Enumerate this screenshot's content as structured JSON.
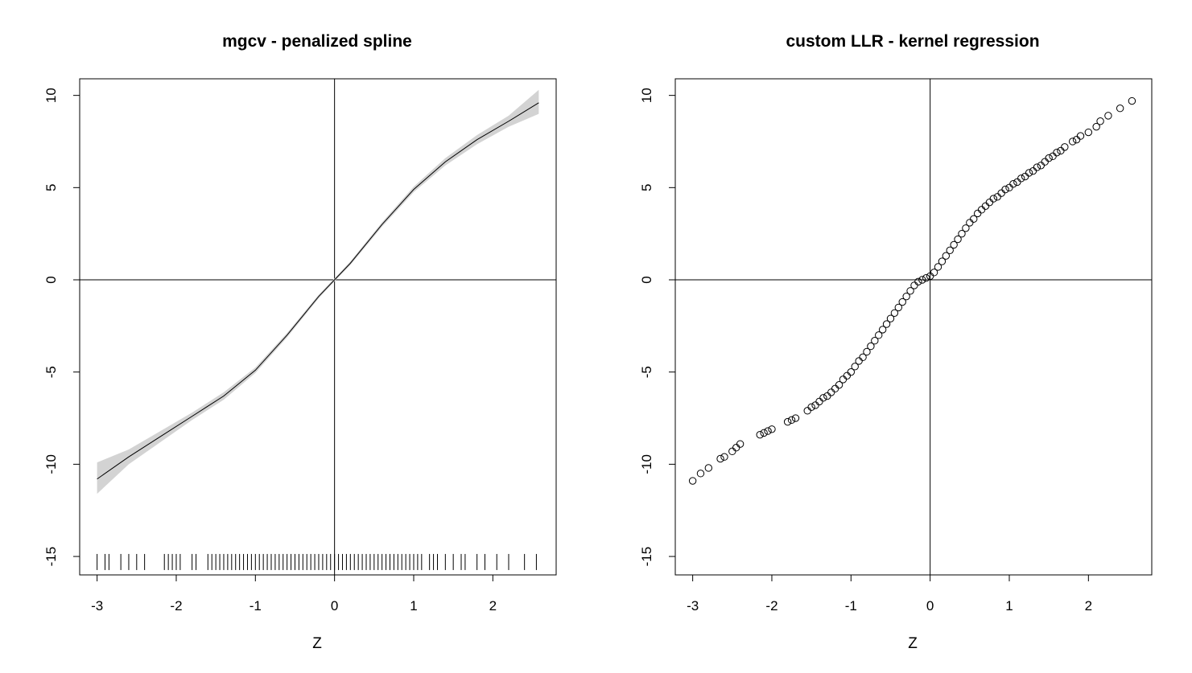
{
  "chart_data": [
    {
      "type": "line",
      "title": "mgcv - penalized spline",
      "xlabel": "Z",
      "ylabel": "",
      "xlim": [
        -3.22,
        2.8
      ],
      "ylim": [
        -16.0,
        10.9
      ],
      "x_ticks": [
        "-3",
        "-2",
        "-1",
        "0",
        "1",
        "2"
      ],
      "y_ticks": [
        "-15",
        "-10",
        "-5",
        "0",
        "5",
        "10"
      ],
      "reference_lines": {
        "x": 0,
        "y": 0
      },
      "grid": false,
      "legend": "none",
      "band_color": "#d3d3d3",
      "line_color": "#000000",
      "series": [
        {
          "x": [
            -3.0,
            -2.6,
            -2.2,
            -1.8,
            -1.4,
            -1.0,
            -0.6,
            -0.2,
            0.0,
            0.2,
            0.6,
            1.0,
            1.4,
            1.8,
            2.2,
            2.58
          ],
          "y": [
            -10.8,
            -9.6,
            -8.5,
            -7.4,
            -6.3,
            -4.9,
            -3.0,
            -0.9,
            0.0,
            0.9,
            3.0,
            4.9,
            6.4,
            7.6,
            8.6,
            9.6
          ],
          "lower": [
            -11.6,
            -10.0,
            -8.8,
            -7.6,
            -6.5,
            -5.05,
            -3.12,
            -1.0,
            -0.08,
            0.8,
            2.88,
            4.75,
            6.2,
            7.35,
            8.3,
            9.0
          ],
          "upper": [
            -9.9,
            -9.2,
            -8.2,
            -7.2,
            -6.1,
            -4.75,
            -2.88,
            -0.8,
            0.08,
            1.0,
            3.12,
            5.05,
            6.6,
            7.85,
            8.9,
            10.3
          ]
        }
      ],
      "rug_y": -15.3,
      "rug_x": [
        -3.0,
        -2.9,
        -2.85,
        -2.7,
        -2.6,
        -2.5,
        -2.4,
        -2.15,
        -2.1,
        -2.05,
        -2.0,
        -1.95,
        -1.8,
        -1.75,
        -1.6,
        -1.55,
        -1.5,
        -1.45,
        -1.4,
        -1.35,
        -1.3,
        -1.25,
        -1.2,
        -1.15,
        -1.1,
        -1.05,
        -1.0,
        -0.95,
        -0.9,
        -0.85,
        -0.8,
        -0.75,
        -0.7,
        -0.65,
        -0.6,
        -0.55,
        -0.5,
        -0.45,
        -0.4,
        -0.35,
        -0.3,
        -0.25,
        -0.2,
        -0.15,
        -0.1,
        -0.05,
        0.0,
        0.05,
        0.1,
        0.15,
        0.2,
        0.25,
        0.3,
        0.35,
        0.4,
        0.45,
        0.5,
        0.55,
        0.6,
        0.65,
        0.7,
        0.75,
        0.8,
        0.85,
        0.9,
        0.95,
        1.0,
        1.05,
        1.1,
        1.2,
        1.25,
        1.3,
        1.4,
        1.5,
        1.6,
        1.65,
        1.8,
        1.9,
        2.05,
        2.2,
        2.4,
        2.55
      ]
    },
    {
      "type": "scatter",
      "title": "custom LLR - kernel regression",
      "xlabel": "Z",
      "ylabel": "",
      "xlim": [
        -3.22,
        2.8
      ],
      "ylim": [
        -16.0,
        10.9
      ],
      "x_ticks": [
        "-3",
        "-2",
        "-1",
        "0",
        "1",
        "2"
      ],
      "y_ticks": [
        "-15",
        "-10",
        "-5",
        "0",
        "5",
        "10"
      ],
      "reference_lines": {
        "x": 0,
        "y": 0
      },
      "grid": false,
      "legend": "none",
      "marker": "open-circle",
      "series": [
        {
          "x": [
            -3.0,
            -2.9,
            -2.8,
            -2.65,
            -2.6,
            -2.5,
            -2.45,
            -2.4,
            -2.15,
            -2.1,
            -2.05,
            -2.0,
            -1.8,
            -1.75,
            -1.7,
            -1.55,
            -1.5,
            -1.45,
            -1.4,
            -1.35,
            -1.3,
            -1.25,
            -1.2,
            -1.15,
            -1.1,
            -1.05,
            -1.0,
            -0.95,
            -0.9,
            -0.85,
            -0.8,
            -0.75,
            -0.7,
            -0.65,
            -0.6,
            -0.55,
            -0.5,
            -0.45,
            -0.4,
            -0.35,
            -0.3,
            -0.25,
            -0.2,
            -0.15,
            -0.1,
            -0.05,
            0.0,
            0.05,
            0.1,
            0.15,
            0.2,
            0.25,
            0.3,
            0.35,
            0.4,
            0.45,
            0.5,
            0.55,
            0.6,
            0.65,
            0.7,
            0.75,
            0.8,
            0.85,
            0.9,
            0.95,
            1.0,
            1.05,
            1.1,
            1.15,
            1.2,
            1.25,
            1.3,
            1.35,
            1.4,
            1.45,
            1.5,
            1.55,
            1.6,
            1.65,
            1.7,
            1.8,
            1.85,
            1.9,
            2.0,
            2.1,
            2.15,
            2.25,
            2.4,
            2.55
          ],
          "y": [
            -10.9,
            -10.5,
            -10.2,
            -9.7,
            -9.6,
            -9.3,
            -9.1,
            -8.9,
            -8.4,
            -8.3,
            -8.2,
            -8.1,
            -7.7,
            -7.6,
            -7.5,
            -7.1,
            -6.9,
            -6.8,
            -6.6,
            -6.4,
            -6.3,
            -6.1,
            -5.9,
            -5.7,
            -5.4,
            -5.2,
            -5.0,
            -4.7,
            -4.4,
            -4.2,
            -3.9,
            -3.6,
            -3.3,
            -3.0,
            -2.7,
            -2.4,
            -2.1,
            -1.8,
            -1.5,
            -1.2,
            -0.9,
            -0.6,
            -0.3,
            -0.1,
            0.0,
            0.1,
            0.2,
            0.4,
            0.7,
            1.0,
            1.3,
            1.6,
            1.9,
            2.2,
            2.5,
            2.8,
            3.1,
            3.3,
            3.6,
            3.8,
            4.0,
            4.2,
            4.4,
            4.5,
            4.7,
            4.9,
            5.0,
            5.2,
            5.3,
            5.5,
            5.6,
            5.8,
            5.9,
            6.1,
            6.2,
            6.4,
            6.6,
            6.7,
            6.9,
            7.0,
            7.2,
            7.5,
            7.6,
            7.8,
            8.0,
            8.3,
            8.6,
            8.9,
            9.3,
            9.7
          ]
        }
      ]
    }
  ]
}
